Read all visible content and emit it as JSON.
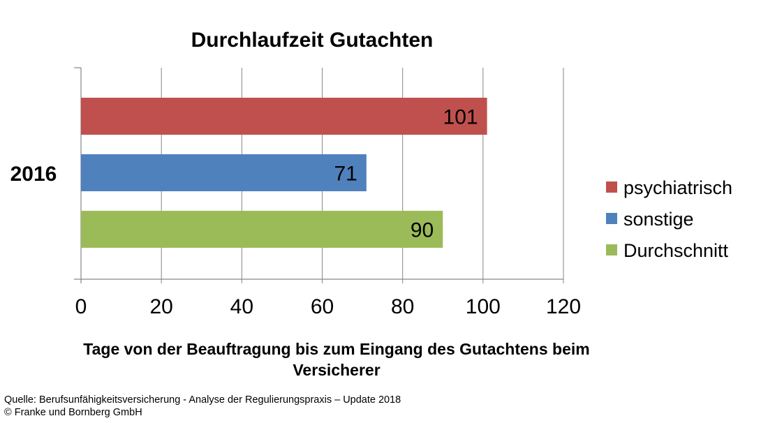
{
  "chart_data": {
    "type": "bar",
    "orientation": "horizontal",
    "title": "Durchlaufzeit Gutachten",
    "categories": [
      "2016"
    ],
    "series": [
      {
        "name": "psychiatrisch",
        "color": "#C0504D",
        "values": [
          101
        ]
      },
      {
        "name": "sonstige",
        "color": "#4F81BD",
        "values": [
          71
        ]
      },
      {
        "name": "Durchschnitt",
        "color": "#9BBB59",
        "values": [
          90
        ]
      }
    ],
    "xlabel": "Tage von der Beauftragung bis zum Eingang des Gutachtens beim Versicherer",
    "xlabel_lines": [
      "Tage von der Beauftragung bis zum Eingang des Gutachtens beim",
      "Versicherer"
    ],
    "ylabel": "",
    "xlim": [
      0,
      120
    ],
    "xticks": [
      0,
      20,
      40,
      60,
      80,
      100,
      120
    ],
    "grid": true,
    "legend_position": "right",
    "data_labels": true
  },
  "footer": {
    "source": "Quelle: Berufsunfähigkeitsversicherung - Analyse der Regulierungspraxis – Update 2018",
    "copyright": "© Franke und Bornberg GmbH"
  }
}
